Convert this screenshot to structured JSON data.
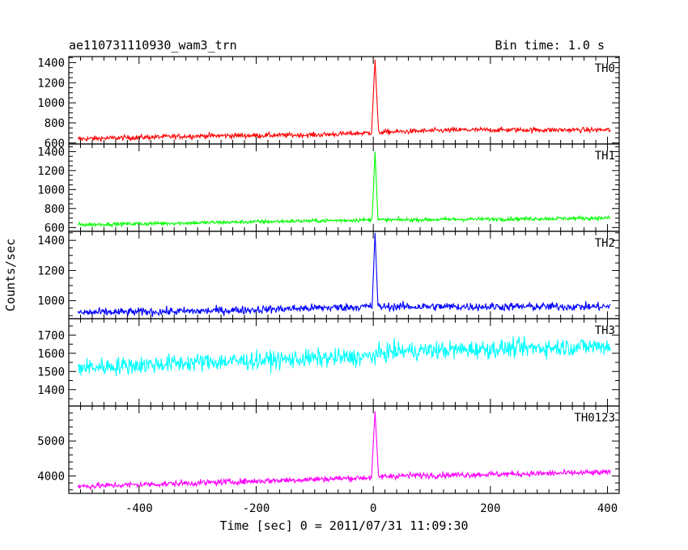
{
  "header": {
    "title": "ae110731110930_wam3_trn",
    "bin_time": "Bin time: 1.0 s"
  },
  "chart_data": {
    "type": "line",
    "title": "ae110731110930_wam3_trn",
    "xlabel": "Time [sec] 0 = 2011/07/31 11:09:30",
    "ylabel": "Counts/sec",
    "xlim": [
      -520,
      420
    ],
    "x_ticks": [
      -400,
      -200,
      0,
      200,
      400
    ],
    "x_range": [
      -505,
      405
    ],
    "grid": false,
    "panels": [
      {
        "name": "TH0",
        "color": "#ff0000",
        "ylim": [
          590,
          1460
        ],
        "yticks": [
          600,
          800,
          1000,
          1200,
          1400
        ],
        "baseline": [
          [
            -505,
            640
          ],
          [
            -300,
            670
          ],
          [
            -100,
            680
          ],
          [
            -10,
            700
          ],
          [
            30,
            710
          ],
          [
            150,
            730
          ],
          [
            405,
            730
          ]
        ],
        "noise": 55,
        "peak": {
          "x": 3,
          "value": 1430,
          "width": 5
        }
      },
      {
        "name": "TH1",
        "color": "#00ff00",
        "ylim": [
          560,
          1480
        ],
        "yticks": [
          600,
          800,
          1000,
          1200,
          1400
        ],
        "baseline": [
          [
            -505,
            630
          ],
          [
            -300,
            650
          ],
          [
            -10,
            680
          ],
          [
            30,
            680
          ],
          [
            405,
            700
          ]
        ],
        "noise": 45,
        "peak": {
          "x": 3,
          "value": 1400,
          "width": 4
        }
      },
      {
        "name": "TH2",
        "color": "#0000ff",
        "ylim": [
          880,
          1460
        ],
        "yticks": [
          1000,
          1200,
          1400
        ],
        "baseline": [
          [
            -505,
            920
          ],
          [
            -300,
            930
          ],
          [
            -10,
            960
          ],
          [
            30,
            960
          ],
          [
            405,
            960
          ]
        ],
        "noise": 60,
        "peak": {
          "x": 3,
          "value": 1450,
          "width": 4
        }
      },
      {
        "name": "TH3",
        "color": "#00ffff",
        "ylim": [
          1310,
          1790
        ],
        "yticks": [
          1400,
          1500,
          1600,
          1700
        ],
        "baseline": [
          [
            -505,
            1520
          ],
          [
            -300,
            1550
          ],
          [
            -10,
            1580
          ],
          [
            30,
            1610
          ],
          [
            405,
            1640
          ]
        ],
        "noise": 110,
        "peak": null
      },
      {
        "name": "TH0123",
        "color": "#ff00ff",
        "ylim": [
          3500,
          6000
        ],
        "yticks": [
          4000,
          5000
        ],
        "baseline": [
          [
            -505,
            3700
          ],
          [
            -300,
            3800
          ],
          [
            -10,
            3950
          ],
          [
            30,
            4000
          ],
          [
            405,
            4100
          ]
        ],
        "noise": 190,
        "peak": {
          "x": 3,
          "value": 5850,
          "width": 5
        }
      }
    ]
  }
}
